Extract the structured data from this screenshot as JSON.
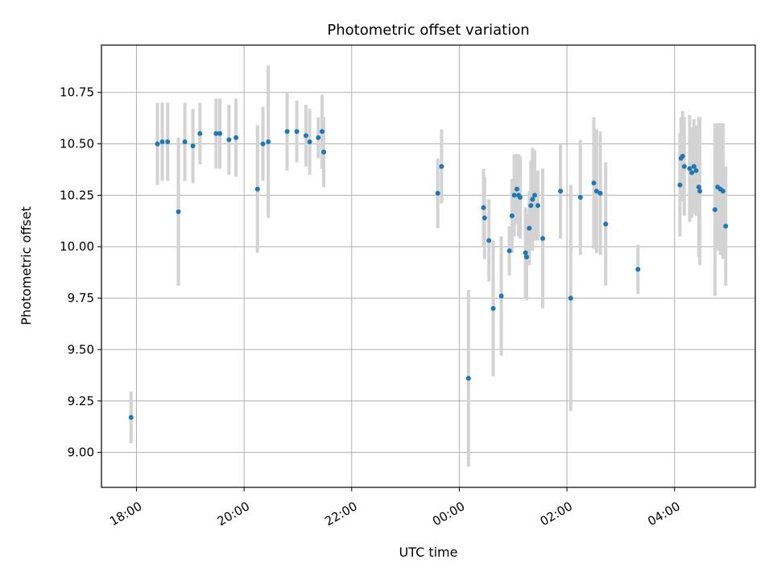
{
  "chart_data": {
    "type": "scatter",
    "title": "Photometric offset variation",
    "xlabel": "UTC time",
    "ylabel": "Photometric offset",
    "grid": true,
    "xlim": [
      17.35,
      29.5
    ],
    "ylim": [
      8.83,
      10.98
    ],
    "x_ticks": [
      {
        "value": 18,
        "label": "18:00"
      },
      {
        "value": 20,
        "label": "20:00"
      },
      {
        "value": 22,
        "label": "22:00"
      },
      {
        "value": 24,
        "label": "00:00"
      },
      {
        "value": 26,
        "label": "02:00"
      },
      {
        "value": 28,
        "label": "04:00"
      }
    ],
    "y_ticks": [
      {
        "value": 9.0,
        "label": "9.00"
      },
      {
        "value": 9.25,
        "label": "9.25"
      },
      {
        "value": 9.5,
        "label": "9.50"
      },
      {
        "value": 9.75,
        "label": "9.75"
      },
      {
        "value": 10.0,
        "label": "10.00"
      },
      {
        "value": 10.25,
        "label": "10.25"
      },
      {
        "value": 10.5,
        "label": "10.50"
      },
      {
        "value": 10.75,
        "label": "10.75"
      }
    ],
    "colors": {
      "point": "#1f77b4",
      "errorbar": "#d3d3d3",
      "grid": "#b0b0b0"
    },
    "series": [
      {
        "name": "Photometric offset",
        "points": [
          [
            17.9,
            9.17,
            0.125
          ],
          [
            18.39,
            10.5,
            0.2
          ],
          [
            18.48,
            10.51,
            0.19
          ],
          [
            18.58,
            10.51,
            0.19
          ],
          [
            18.78,
            10.17,
            0.36
          ],
          [
            18.9,
            10.51,
            0.19
          ],
          [
            19.05,
            10.49,
            0.18
          ],
          [
            19.18,
            10.55,
            0.15
          ],
          [
            19.48,
            10.55,
            0.17
          ],
          [
            19.55,
            10.55,
            0.17
          ],
          [
            19.72,
            10.52,
            0.17
          ],
          [
            19.85,
            10.53,
            0.19
          ],
          [
            20.25,
            10.28,
            0.31
          ],
          [
            20.35,
            10.5,
            0.18
          ],
          [
            20.45,
            10.51,
            0.37
          ],
          [
            20.8,
            10.56,
            0.19
          ],
          [
            20.98,
            10.56,
            0.15
          ],
          [
            21.15,
            10.54,
            0.15
          ],
          [
            21.22,
            10.51,
            0.16
          ],
          [
            21.38,
            10.53,
            0.1
          ],
          [
            21.45,
            10.56,
            0.18
          ],
          [
            21.48,
            10.46,
            0.17
          ],
          [
            23.6,
            10.26,
            0.17
          ],
          [
            23.67,
            10.39,
            0.18
          ],
          [
            24.17,
            9.36,
            0.43
          ],
          [
            24.45,
            10.19,
            0.19
          ],
          [
            24.47,
            10.14,
            0.2
          ],
          [
            24.55,
            10.03,
            0.2
          ],
          [
            24.63,
            9.7,
            0.33
          ],
          [
            24.78,
            9.76,
            0.29
          ],
          [
            24.93,
            9.98,
            0.12
          ],
          [
            24.98,
            10.15,
            0.18
          ],
          [
            25.02,
            10.25,
            0.2
          ],
          [
            25.07,
            10.28,
            0.17
          ],
          [
            25.1,
            10.25,
            0.2
          ],
          [
            25.13,
            10.24,
            0.2
          ],
          [
            25.23,
            9.97,
            0.22
          ],
          [
            25.25,
            9.95,
            0.21
          ],
          [
            25.3,
            10.09,
            0.18
          ],
          [
            25.33,
            10.2,
            0.22
          ],
          [
            25.36,
            10.23,
            0.25
          ],
          [
            25.4,
            10.25,
            0.22
          ],
          [
            25.46,
            10.2,
            0.17
          ],
          [
            25.55,
            10.04,
            0.34
          ],
          [
            25.88,
            10.27,
            0.23
          ],
          [
            26.07,
            9.75,
            0.55
          ],
          [
            26.25,
            10.24,
            0.28
          ],
          [
            26.5,
            10.31,
            0.32
          ],
          [
            26.55,
            10.27,
            0.3
          ],
          [
            26.62,
            10.26,
            0.3
          ],
          [
            26.72,
            10.11,
            0.3
          ],
          [
            27.32,
            9.89,
            0.12
          ],
          [
            28.1,
            10.3,
            0.25
          ],
          [
            28.12,
            10.43,
            0.2
          ],
          [
            28.15,
            10.44,
            0.22
          ],
          [
            28.18,
            10.39,
            0.24
          ],
          [
            28.28,
            10.38,
            0.26
          ],
          [
            28.32,
            10.36,
            0.22
          ],
          [
            28.36,
            10.39,
            0.23
          ],
          [
            28.4,
            10.37,
            0.22
          ],
          [
            28.45,
            10.29,
            0.34
          ],
          [
            28.47,
            10.27,
            0.36
          ],
          [
            28.75,
            10.18,
            0.42
          ],
          [
            28.8,
            10.29,
            0.31
          ],
          [
            28.85,
            10.28,
            0.32
          ],
          [
            28.9,
            10.27,
            0.33
          ],
          [
            28.95,
            10.1,
            0.29
          ]
        ]
      }
    ]
  }
}
